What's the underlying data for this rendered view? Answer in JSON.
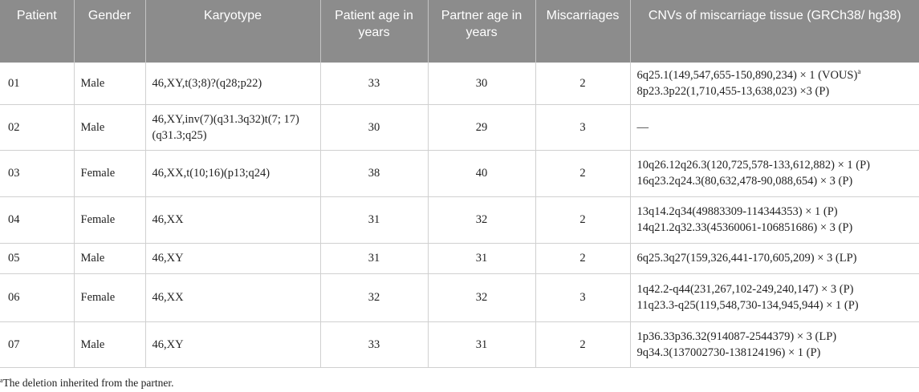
{
  "table": {
    "headers": [
      "Patient",
      "Gender",
      "Karyotype",
      "Patient age in years",
      "Partner age in years",
      "Miscarriages",
      "CNVs of miscarriage tissue (GRCh38/ hg38)"
    ],
    "rows": [
      {
        "patient": "01",
        "gender": "Male",
        "karyotype": "46,XY,t(3;8)?(q28;p22)",
        "patient_age": "33",
        "partner_age": "30",
        "miscarriages": "2",
        "cnv_1": "6q25.1(149,547,655-150,890,234) × 1 (VOUS)",
        "cnv_1_note": "a",
        "cnv_2": "8p23.3p22(1,710,455-13,638,023) ×3 (P)"
      },
      {
        "patient": "02",
        "gender": "Male",
        "karyotype": "46,XY,inv(7)(q31.3q32)t(7; 17)(q31.3;q25)",
        "patient_age": "30",
        "partner_age": "29",
        "miscarriages": "3",
        "cnv_1": "—",
        "cnv_2": ""
      },
      {
        "patient": "03",
        "gender": "Female",
        "karyotype": "46,XX,t(10;16)(p13;q24)",
        "patient_age": "38",
        "partner_age": "40",
        "miscarriages": "2",
        "cnv_1": "10q26.12q26.3(120,725,578-133,612,882) × 1 (P)",
        "cnv_2": "16q23.2q24.3(80,632,478-90,088,654) × 3 (P)"
      },
      {
        "patient": "04",
        "gender": "Female",
        "karyotype": "46,XX",
        "patient_age": "31",
        "partner_age": "32",
        "miscarriages": "2",
        "cnv_1": "13q14.2q34(49883309-114344353) × 1 (P)",
        "cnv_2": "14q21.2q32.33(45360061-106851686) × 3 (P)"
      },
      {
        "patient": "05",
        "gender": "Male",
        "karyotype": "46,XY",
        "patient_age": "31",
        "partner_age": "31",
        "miscarriages": "2",
        "cnv_1": "6q25.3q27(159,326,441-170,605,209) × 3 (LP)",
        "cnv_2": ""
      },
      {
        "patient": "06",
        "gender": "Female",
        "karyotype": "46,XX",
        "patient_age": "32",
        "partner_age": "32",
        "miscarriages": "3",
        "cnv_1": "1q42.2-q44(231,267,102-249,240,147) × 3 (P)",
        "cnv_2": "11q23.3-q25(119,548,730-134,945,944) × 1 (P)"
      },
      {
        "patient": "07",
        "gender": "Male",
        "karyotype": "46,XY",
        "patient_age": "33",
        "partner_age": "31",
        "miscarriages": "2",
        "cnv_1": "1p36.33p36.32(914087-2544379) × 3 (LP)",
        "cnv_2": "9q34.3(137002730-138124196) × 1 (P)"
      }
    ]
  },
  "footnote": {
    "marker": "a",
    "text": "The deletion inherited from the partner."
  }
}
